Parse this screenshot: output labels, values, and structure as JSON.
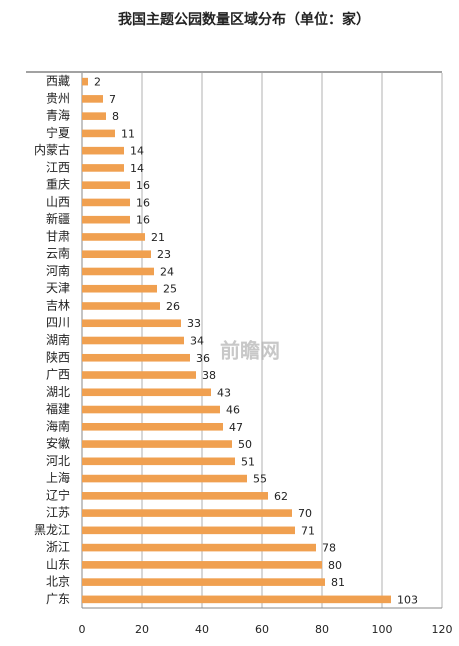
{
  "chart_data": {
    "type": "bar",
    "orientation": "horizontal",
    "title": "我国主题公园数量区域分布（单位：家）",
    "watermark": "前瞻网",
    "categories": [
      "西藏",
      "贵州",
      "青海",
      "宁夏",
      "内蒙古",
      "江西",
      "重庆",
      "山西",
      "新疆",
      "甘肃",
      "云南",
      "河南",
      "天津",
      "吉林",
      "四川",
      "湖南",
      "陕西",
      "广西",
      "湖北",
      "福建",
      "海南",
      "安徽",
      "河北",
      "上海",
      "辽宁",
      "江苏",
      "黑龙江",
      "浙江",
      "山东",
      "北京",
      "广东"
    ],
    "values": [
      2,
      7,
      8,
      11,
      14,
      14,
      16,
      16,
      16,
      21,
      23,
      24,
      25,
      26,
      33,
      34,
      36,
      38,
      43,
      46,
      47,
      50,
      51,
      55,
      62,
      70,
      71,
      78,
      80,
      81,
      103
    ],
    "color": "#f0a050",
    "xlim": [
      0,
      120
    ],
    "xticks": [
      0,
      20,
      40,
      60,
      80,
      100,
      120
    ],
    "grid": true
  }
}
